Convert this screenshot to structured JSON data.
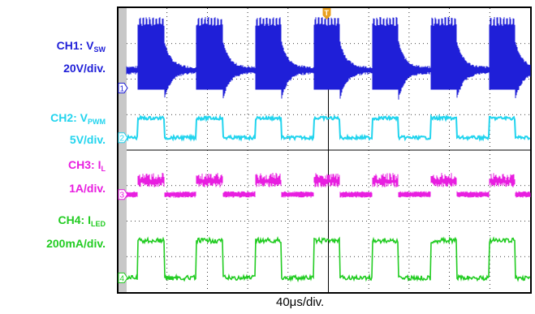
{
  "colors": {
    "ch1": "#1f1fd8",
    "ch2": "#22d4ee",
    "ch3": "#e81ee0",
    "ch4": "#22cc22",
    "grid": "#000000",
    "frame": "#000000",
    "trigger": "#e8a020"
  },
  "labels": {
    "ch1_name": "CH1: V",
    "ch1_sub": "SW",
    "ch1_scale": "20V/div.",
    "ch2_name": "CH2: V",
    "ch2_sub": "PWM",
    "ch2_scale": "5V/div.",
    "ch3_name": "CH3: I",
    "ch3_sub": "L",
    "ch3_scale": "1A/div.",
    "ch4_name": "CH4: I",
    "ch4_sub": "LED",
    "ch4_scale": "200mA/div."
  },
  "timebase": "40μs/div.",
  "markers": {
    "ch1": "1",
    "ch2": "2",
    "ch3": "3",
    "ch4": "4",
    "trigger": "T"
  },
  "chart_data": {
    "type": "line",
    "x_divisions": 10,
    "y_divisions": 8,
    "grid": true,
    "time_per_div_us": 40,
    "pwm_period_divisions": 1.45,
    "pwm_on_fraction": 0.45,
    "series": [
      {
        "name": "CH1: VSW",
        "scale": "20V/div.",
        "low_div": 0.0,
        "high_div": 2.0,
        "behavior": "switching bursts during PWM on, decaying ringing after turn-off"
      },
      {
        "name": "CH2: VPWM",
        "scale": "5V/div.",
        "low_div": 0.0,
        "high_div": 0.55,
        "behavior": "square wave"
      },
      {
        "name": "CH3: IL",
        "scale": "1A/div.",
        "low_div": 0.0,
        "high_div": 0.75,
        "behavior": "triangular ripple during on, flat low during off"
      },
      {
        "name": "CH4: ILED",
        "scale": "200mA/div.",
        "low_div": 0.0,
        "high_div": 1.05,
        "behavior": "square wave with noise"
      }
    ]
  }
}
